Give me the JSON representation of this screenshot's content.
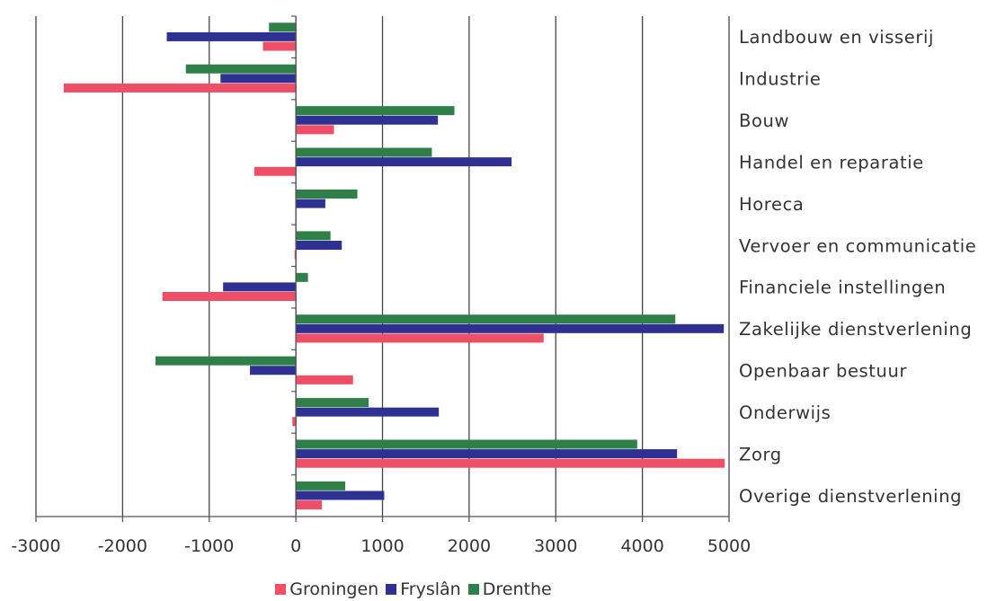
{
  "chart_data": {
    "type": "bar",
    "orientation": "horizontal",
    "categories": [
      "Landbouw en visserij",
      "Industrie",
      "Bouw",
      "Handel en reparatie",
      "Horeca",
      "Vervoer en communicatie",
      "Financiele instellingen",
      "Zakelijke dienstverlening",
      "Openbaar bestuur",
      "Onderwijs",
      "Zorg",
      "Overige dienstverlening"
    ],
    "series": [
      {
        "name": "Groningen",
        "color": "#ee4e66",
        "values": [
          -380,
          -2680,
          440,
          -480,
          0,
          -15,
          -1540,
          2860,
          660,
          -40,
          4950,
          300
        ]
      },
      {
        "name": "Fryslân",
        "color": "#2e3192",
        "values": [
          -1490,
          -870,
          1640,
          2490,
          340,
          530,
          -840,
          4940,
          -530,
          1650,
          4400,
          1020
        ]
      },
      {
        "name": "Drenthe",
        "color": "#2e8048",
        "values": [
          -310,
          -1270,
          1830,
          1570,
          710,
          400,
          140,
          4380,
          -1620,
          840,
          3940,
          570
        ]
      }
    ],
    "xlim": [
      -3000,
      5000
    ],
    "xticks": [
      "-3000",
      "-2000",
      "-1000",
      "0",
      "1000",
      "2000",
      "3000",
      "4000",
      "5000"
    ],
    "title": "",
    "xlabel": "",
    "ylabel": "",
    "grid": "vertical",
    "legend_position": "bottom"
  }
}
